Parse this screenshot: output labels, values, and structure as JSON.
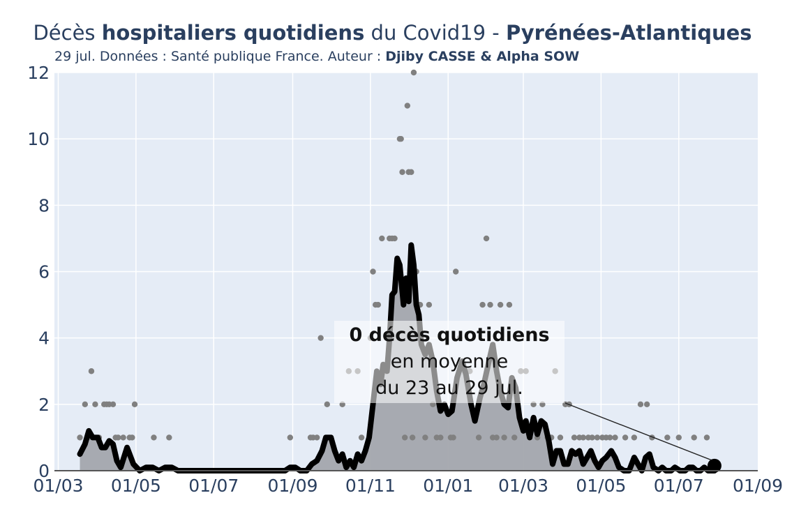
{
  "title": {
    "part1": "Décès ",
    "bold1": "hospitaliers quotidiens",
    "part2": " du Covid19 - ",
    "bold2": "Pyrénées-Atlantiques"
  },
  "subtitle": {
    "text": "29 jul. Données : Santé publique France. Auteur : ",
    "authors": "Djiby CASSE & Alpha SOW"
  },
  "annotation": {
    "line1": "0 décès quotidiens",
    "line2": "en moyenne",
    "line3": "du 23 au 29 jul."
  },
  "colors": {
    "plot_bg": "#e5ecf6",
    "grid": "#ffffff",
    "dots": "#808080",
    "area": "#a3a6ad",
    "line": "#000000",
    "text": "#2a3f5f"
  },
  "chart_data": {
    "type": "line",
    "title": "Décès hospitaliers quotidiens du Covid19 - Pyrénées-Atlantiques",
    "xlabel": "",
    "ylabel": "",
    "x_ticks": [
      "01/03",
      "01/05",
      "01/07",
      "01/09",
      "01/11",
      "01/01",
      "01/03",
      "01/05",
      "01/07",
      "01/09"
    ],
    "x_tick_dates": [
      "2020-03-01",
      "2020-05-01",
      "2020-07-01",
      "2020-09-01",
      "2020-11-01",
      "2021-01-01",
      "2021-03-01",
      "2021-05-01",
      "2021-07-01",
      "2021-09-01"
    ],
    "y_ticks": [
      0,
      2,
      4,
      6,
      8,
      10,
      12
    ],
    "ylim": [
      0,
      12
    ],
    "xlim": [
      "2020-02-27",
      "2021-09-01"
    ],
    "grid": true,
    "legend": "none",
    "series": [
      {
        "name": "",
        "kind": "daily_points",
        "points": [
          [
            "2020-03-18",
            1
          ],
          [
            "2020-03-22",
            2
          ],
          [
            "2020-03-24",
            1
          ],
          [
            "2020-03-27",
            3
          ],
          [
            "2020-03-28",
            1
          ],
          [
            "2020-03-30",
            2
          ],
          [
            "2020-04-02",
            1
          ],
          [
            "2020-04-06",
            2
          ],
          [
            "2020-04-08",
            2
          ],
          [
            "2020-04-10",
            2
          ],
          [
            "2020-04-13",
            2
          ],
          [
            "2020-04-15",
            1
          ],
          [
            "2020-04-17",
            1
          ],
          [
            "2020-04-21",
            1
          ],
          [
            "2020-04-26",
            1
          ],
          [
            "2020-04-28",
            1
          ],
          [
            "2020-04-30",
            2
          ],
          [
            "2020-05-15",
            1
          ],
          [
            "2020-05-27",
            1
          ],
          [
            "2020-08-30",
            1
          ],
          [
            "2020-09-15",
            1
          ],
          [
            "2020-09-17",
            1
          ],
          [
            "2020-09-20",
            1
          ],
          [
            "2020-09-23",
            4
          ],
          [
            "2020-09-28",
            2
          ],
          [
            "2020-10-10",
            2
          ],
          [
            "2020-10-15",
            3
          ],
          [
            "2020-10-22",
            3
          ],
          [
            "2020-10-25",
            1
          ],
          [
            "2020-11-01",
            4
          ],
          [
            "2020-11-03",
            6
          ],
          [
            "2020-11-05",
            5
          ],
          [
            "2020-11-07",
            5
          ],
          [
            "2020-11-10",
            7
          ],
          [
            "2020-11-13",
            3
          ],
          [
            "2020-11-16",
            7
          ],
          [
            "2020-11-18",
            7
          ],
          [
            "2020-11-20",
            7
          ],
          [
            "2020-11-22",
            6
          ],
          [
            "2020-11-24",
            10
          ],
          [
            "2020-11-25",
            10
          ],
          [
            "2020-11-26",
            9
          ],
          [
            "2020-11-28",
            1
          ],
          [
            "2020-11-30",
            11
          ],
          [
            "2020-12-01",
            9
          ],
          [
            "2020-12-03",
            9
          ],
          [
            "2020-12-04",
            1
          ],
          [
            "2020-12-05",
            12
          ],
          [
            "2020-12-07",
            6
          ],
          [
            "2020-12-10",
            5
          ],
          [
            "2020-12-14",
            1
          ],
          [
            "2020-12-17",
            5
          ],
          [
            "2020-12-20",
            2
          ],
          [
            "2020-12-23",
            1
          ],
          [
            "2020-12-26",
            1
          ],
          [
            "2020-12-29",
            2
          ],
          [
            "2021-01-03",
            1
          ],
          [
            "2021-01-05",
            1
          ],
          [
            "2021-01-07",
            6
          ],
          [
            "2021-01-10",
            4
          ],
          [
            "2021-01-14",
            3
          ],
          [
            "2021-01-18",
            3
          ],
          [
            "2021-01-25",
            1
          ],
          [
            "2021-01-28",
            5
          ],
          [
            "2021-01-31",
            7
          ],
          [
            "2021-02-03",
            5
          ],
          [
            "2021-02-05",
            1
          ],
          [
            "2021-02-08",
            1
          ],
          [
            "2021-02-11",
            5
          ],
          [
            "2021-02-14",
            1
          ],
          [
            "2021-02-18",
            5
          ],
          [
            "2021-02-22",
            1
          ],
          [
            "2021-02-27",
            3
          ],
          [
            "2021-03-03",
            3
          ],
          [
            "2021-03-06",
            1
          ],
          [
            "2021-03-09",
            2
          ],
          [
            "2021-03-12",
            1
          ],
          [
            "2021-03-16",
            2
          ],
          [
            "2021-03-20",
            1
          ],
          [
            "2021-03-23",
            1
          ],
          [
            "2021-03-26",
            3
          ],
          [
            "2021-03-30",
            1
          ],
          [
            "2021-04-03",
            2
          ],
          [
            "2021-04-06",
            2
          ],
          [
            "2021-04-10",
            1
          ],
          [
            "2021-04-14",
            1
          ],
          [
            "2021-04-17",
            1
          ],
          [
            "2021-04-21",
            1
          ],
          [
            "2021-04-24",
            1
          ],
          [
            "2021-04-28",
            1
          ],
          [
            "2021-05-02",
            1
          ],
          [
            "2021-05-05",
            1
          ],
          [
            "2021-05-08",
            1
          ],
          [
            "2021-05-12",
            1
          ],
          [
            "2021-05-20",
            1
          ],
          [
            "2021-05-27",
            1
          ],
          [
            "2021-06-01",
            2
          ],
          [
            "2021-06-06",
            2
          ],
          [
            "2021-06-10",
            1
          ],
          [
            "2021-06-22",
            1
          ],
          [
            "2021-07-01",
            1
          ],
          [
            "2021-07-13",
            1
          ],
          [
            "2021-07-23",
            1
          ]
        ]
      },
      {
        "name": "",
        "kind": "rolling_average_7d",
        "points": [
          [
            "2020-03-18",
            0.5
          ],
          [
            "2020-03-22",
            0.8
          ],
          [
            "2020-03-25",
            1.2
          ],
          [
            "2020-03-28",
            1.0
          ],
          [
            "2020-04-01",
            1.0
          ],
          [
            "2020-04-04",
            0.7
          ],
          [
            "2020-04-07",
            0.7
          ],
          [
            "2020-04-10",
            0.9
          ],
          [
            "2020-04-13",
            0.8
          ],
          [
            "2020-04-16",
            0.3
          ],
          [
            "2020-04-19",
            0.1
          ],
          [
            "2020-04-24",
            0.7
          ],
          [
            "2020-04-29",
            0.2
          ],
          [
            "2020-05-04",
            0.0
          ],
          [
            "2020-05-09",
            0.1
          ],
          [
            "2020-05-14",
            0.1
          ],
          [
            "2020-05-19",
            0.0
          ],
          [
            "2020-05-24",
            0.1
          ],
          [
            "2020-05-29",
            0.1
          ],
          [
            "2020-06-03",
            0.0
          ],
          [
            "2020-08-26",
            0.0
          ],
          [
            "2020-08-30",
            0.1
          ],
          [
            "2020-09-03",
            0.1
          ],
          [
            "2020-09-07",
            0.0
          ],
          [
            "2020-09-12",
            0.0
          ],
          [
            "2020-09-16",
            0.2
          ],
          [
            "2020-09-20",
            0.3
          ],
          [
            "2020-09-24",
            0.6
          ],
          [
            "2020-09-27",
            1.0
          ],
          [
            "2020-10-01",
            1.0
          ],
          [
            "2020-10-04",
            0.6
          ],
          [
            "2020-10-07",
            0.3
          ],
          [
            "2020-10-10",
            0.5
          ],
          [
            "2020-10-13",
            0.1
          ],
          [
            "2020-10-16",
            0.3
          ],
          [
            "2020-10-19",
            0.1
          ],
          [
            "2020-10-22",
            0.5
          ],
          [
            "2020-10-25",
            0.3
          ],
          [
            "2020-10-28",
            0.6
          ],
          [
            "2020-10-31",
            1.0
          ],
          [
            "2020-11-03",
            2.0
          ],
          [
            "2020-11-06",
            3.0
          ],
          [
            "2020-11-09",
            2.6
          ],
          [
            "2020-11-11",
            3.2
          ],
          [
            "2020-11-14",
            3.0
          ],
          [
            "2020-11-16",
            4.0
          ],
          [
            "2020-11-18",
            5.3
          ],
          [
            "2020-11-20",
            5.4
          ],
          [
            "2020-11-22",
            6.4
          ],
          [
            "2020-11-24",
            6.2
          ],
          [
            "2020-11-26",
            5.4
          ],
          [
            "2020-11-27",
            5.0
          ],
          [
            "2020-11-29",
            5.8
          ],
          [
            "2020-12-01",
            5.1
          ],
          [
            "2020-12-03",
            6.8
          ],
          [
            "2020-12-05",
            6.2
          ],
          [
            "2020-12-07",
            5.0
          ],
          [
            "2020-12-09",
            4.7
          ],
          [
            "2020-12-11",
            3.8
          ],
          [
            "2020-12-14",
            3.5
          ],
          [
            "2020-12-17",
            3.8
          ],
          [
            "2020-12-20",
            3.3
          ],
          [
            "2020-12-23",
            2.4
          ],
          [
            "2020-12-26",
            1.8
          ],
          [
            "2020-12-29",
            2.0
          ],
          [
            "2021-01-01",
            1.7
          ],
          [
            "2021-01-04",
            1.8
          ],
          [
            "2021-01-08",
            2.8
          ],
          [
            "2021-01-12",
            3.3
          ],
          [
            "2021-01-15",
            2.9
          ],
          [
            "2021-01-19",
            2.0
          ],
          [
            "2021-01-22",
            1.5
          ],
          [
            "2021-01-26",
            2.2
          ],
          [
            "2021-01-29",
            2.6
          ],
          [
            "2021-02-02",
            3.3
          ],
          [
            "2021-02-05",
            3.8
          ],
          [
            "2021-02-08",
            3.0
          ],
          [
            "2021-02-11",
            2.4
          ],
          [
            "2021-02-14",
            2.0
          ],
          [
            "2021-02-17",
            1.9
          ],
          [
            "2021-02-20",
            2.8
          ],
          [
            "2021-02-23",
            2.5
          ],
          [
            "2021-02-26",
            1.6
          ],
          [
            "2021-03-01",
            1.2
          ],
          [
            "2021-03-03",
            1.5
          ],
          [
            "2021-03-06",
            1.0
          ],
          [
            "2021-03-09",
            1.6
          ],
          [
            "2021-03-12",
            1.1
          ],
          [
            "2021-03-15",
            1.5
          ],
          [
            "2021-03-18",
            1.4
          ],
          [
            "2021-03-21",
            0.9
          ],
          [
            "2021-03-24",
            0.2
          ],
          [
            "2021-03-27",
            0.6
          ],
          [
            "2021-03-30",
            0.6
          ],
          [
            "2021-04-02",
            0.2
          ],
          [
            "2021-04-05",
            0.2
          ],
          [
            "2021-04-08",
            0.6
          ],
          [
            "2021-04-11",
            0.5
          ],
          [
            "2021-04-14",
            0.6
          ],
          [
            "2021-04-17",
            0.2
          ],
          [
            "2021-04-20",
            0.4
          ],
          [
            "2021-04-23",
            0.6
          ],
          [
            "2021-04-26",
            0.3
          ],
          [
            "2021-04-29",
            0.1
          ],
          [
            "2021-05-02",
            0.3
          ],
          [
            "2021-05-05",
            0.4
          ],
          [
            "2021-05-09",
            0.6
          ],
          [
            "2021-05-12",
            0.4
          ],
          [
            "2021-05-15",
            0.1
          ],
          [
            "2021-05-19",
            0.0
          ],
          [
            "2021-05-23",
            0.0
          ],
          [
            "2021-05-27",
            0.4
          ],
          [
            "2021-05-30",
            0.2
          ],
          [
            "2021-06-02",
            0.0
          ],
          [
            "2021-06-05",
            0.4
          ],
          [
            "2021-06-08",
            0.5
          ],
          [
            "2021-06-11",
            0.1
          ],
          [
            "2021-06-15",
            0.0
          ],
          [
            "2021-06-18",
            0.1
          ],
          [
            "2021-06-21",
            0.0
          ],
          [
            "2021-06-25",
            0.0
          ],
          [
            "2021-06-28",
            0.1
          ],
          [
            "2021-07-02",
            0.0
          ],
          [
            "2021-07-06",
            0.0
          ],
          [
            "2021-07-09",
            0.1
          ],
          [
            "2021-07-12",
            0.1
          ],
          [
            "2021-07-15",
            0.0
          ],
          [
            "2021-07-18",
            0.0
          ],
          [
            "2021-07-21",
            0.1
          ],
          [
            "2021-07-24",
            0.0
          ],
          [
            "2021-07-29",
            0.0
          ]
        ]
      }
    ],
    "highlight_point": [
      "2021-07-29",
      0.15
    ]
  }
}
